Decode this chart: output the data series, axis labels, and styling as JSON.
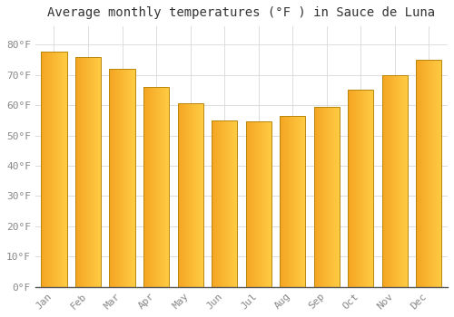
{
  "title": "Average monthly temperatures (°F ) in Sauce de Luna",
  "months": [
    "Jan",
    "Feb",
    "Mar",
    "Apr",
    "May",
    "Jun",
    "Jul",
    "Aug",
    "Sep",
    "Oct",
    "Nov",
    "Dec"
  ],
  "values": [
    77.5,
    76,
    72,
    66,
    60.5,
    55,
    54.5,
    56.5,
    59.5,
    65,
    70,
    75
  ],
  "bar_color_left": "#F5A623",
  "bar_color_right": "#FFCC44",
  "bar_edge_color": "#B8860B",
  "background_color": "#FFFFFF",
  "plot_bg_color": "#FFFFFF",
  "grid_color": "#DDDDDD",
  "ylim": [
    0,
    86
  ],
  "yticks": [
    0,
    10,
    20,
    30,
    40,
    50,
    60,
    70,
    80
  ],
  "title_fontsize": 10,
  "tick_fontsize": 8,
  "tick_color": "#888888",
  "bar_width": 0.75
}
